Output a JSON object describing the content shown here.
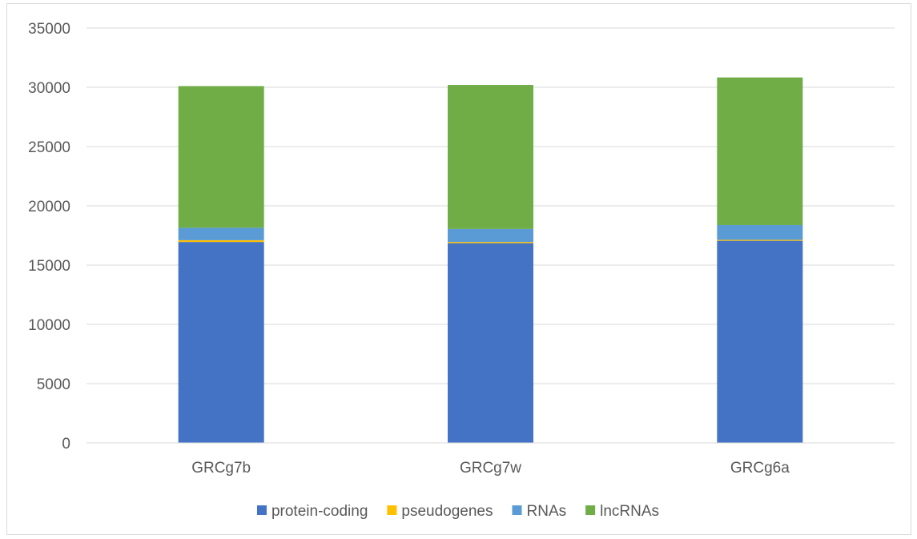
{
  "chart_data": {
    "type": "bar",
    "stacked": true,
    "categories": [
      "GRCg7b",
      "GRCg7w",
      "GRCg6a"
    ],
    "series": [
      {
        "name": "protein-coding",
        "color": "#4472c4",
        "values": [
          16950,
          16850,
          17050
        ]
      },
      {
        "name": "pseudogenes",
        "color": "#ffc000",
        "values": [
          150,
          100,
          80
        ]
      },
      {
        "name": "RNAs",
        "color": "#5b9bd5",
        "values": [
          1050,
          1100,
          1250
        ]
      },
      {
        "name": "lncRNAs",
        "color": "#70ad47",
        "values": [
          11950,
          12150,
          12450
        ]
      }
    ],
    "y_axis": {
      "min": 0,
      "max": 35000,
      "step": 5000,
      "ticks": [
        "0",
        "5000",
        "10000",
        "15000",
        "20000",
        "25000",
        "30000",
        "35000"
      ]
    },
    "grid": true,
    "legend_position": "bottom",
    "title": "",
    "xlabel": "",
    "ylabel": ""
  }
}
